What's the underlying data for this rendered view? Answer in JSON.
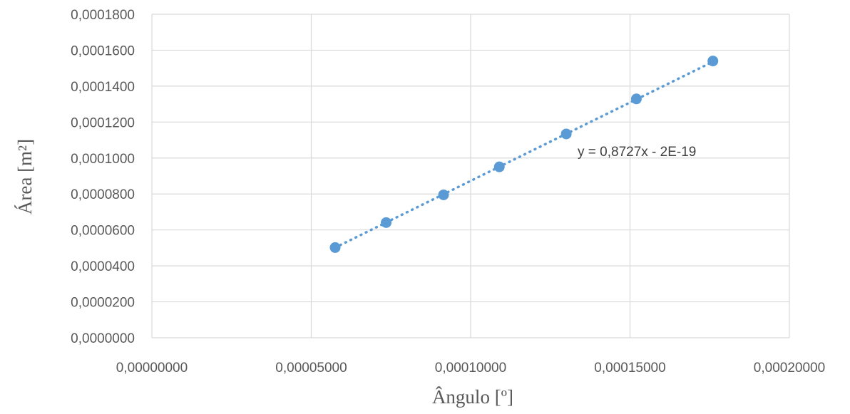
{
  "chart_data": {
    "type": "scatter",
    "title": "",
    "xlabel": "Ângulo [º]",
    "ylabel": "Área [m²]",
    "xlim": [
      0,
      0.0002
    ],
    "ylim": [
      0,
      0.00018
    ],
    "grid": true,
    "x_ticks": [
      "0,00000000",
      "0,00005000",
      "0,00010000",
      "0,00015000",
      "0,00020000"
    ],
    "y_ticks": [
      "0,0000000",
      "0,0000200",
      "0,0000400",
      "0,0000600",
      "0,0000800",
      "0,0001000",
      "0,0001200",
      "0,0001400",
      "0,0001600",
      "0,0001800"
    ],
    "series": [
      {
        "x": [
          5.75e-05,
          7.35e-05,
          9.15e-05,
          0.000109,
          0.00013,
          0.000152,
          0.000176
        ],
        "y": [
          5.02e-05,
          6.41e-05,
          7.95e-05,
          9.51e-05,
          0.0001134,
          0.0001329,
          0.000154
        ],
        "color": "#5b9bd5"
      }
    ],
    "trendline": {
      "type": "linear",
      "style": "dotted",
      "slope": 0.8727,
      "intercept": 0,
      "equation": "y = 0,8727x - 2E-19"
    }
  }
}
